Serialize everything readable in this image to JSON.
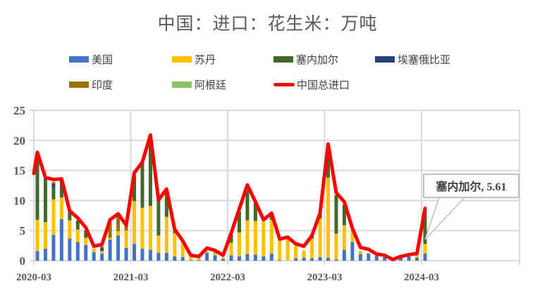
{
  "title": "中国：进口：花生米：万吨",
  "legend": [
    {
      "label": "美国",
      "color": "#4472C4",
      "type": "bar"
    },
    {
      "label": "苏丹",
      "color": "#FFC000",
      "type": "bar"
    },
    {
      "label": "塞内加尔",
      "color": "#43682B",
      "type": "bar"
    },
    {
      "label": "埃塞俄比亚",
      "color": "#264478",
      "type": "bar"
    },
    {
      "label": "印度",
      "color": "#997300",
      "type": "bar"
    },
    {
      "label": "阿根廷",
      "color": "#8CC168",
      "type": "bar"
    },
    {
      "label": "中国总进口",
      "color": "#FF0000",
      "type": "line"
    }
  ],
  "callout": {
    "text": "塞内加尔, 5.61"
  },
  "y_ticks": [
    "0",
    "5",
    "10",
    "15",
    "20",
    "25"
  ],
  "x_ticks": [
    "2020-03",
    "2021-03",
    "2022-03",
    "2023-03",
    "2024-03"
  ],
  "chart_data": {
    "type": "bar",
    "subtype": "stacked bar + line",
    "title": "中国：进口：花生米：万吨",
    "xlabel": "",
    "ylabel": "万吨",
    "ylim": [
      0,
      25
    ],
    "grid": true,
    "legend_position": "top",
    "annotations": [
      {
        "x": "2024-03",
        "series": "塞内加尔",
        "text": "塞内加尔, 5.61"
      }
    ],
    "categories": [
      "2020-03",
      "2020-04",
      "2020-05",
      "2020-06",
      "2020-07",
      "2020-08",
      "2020-09",
      "2020-10",
      "2020-11",
      "2020-12",
      "2021-01",
      "2021-02",
      "2021-03",
      "2021-04",
      "2021-05",
      "2021-06",
      "2021-07",
      "2021-08",
      "2021-09",
      "2021-10",
      "2021-11",
      "2021-12",
      "2022-01",
      "2022-02",
      "2022-03",
      "2022-04",
      "2022-05",
      "2022-06",
      "2022-07",
      "2022-08",
      "2022-09",
      "2022-10",
      "2022-11",
      "2022-12",
      "2023-01",
      "2023-02",
      "2023-03",
      "2023-04",
      "2023-05",
      "2023-06",
      "2023-07",
      "2023-08",
      "2023-09",
      "2023-10",
      "2023-11",
      "2023-12",
      "2024-01",
      "2024-02",
      "2024-03"
    ],
    "series": [
      {
        "name": "美国",
        "type": "bar",
        "color": "#4472C4",
        "values": [
          1.6,
          2.0,
          4.3,
          6.9,
          3.7,
          3.1,
          2.6,
          1.4,
          1.2,
          3.5,
          4.2,
          2.1,
          2.8,
          2.0,
          1.8,
          1.3,
          1.3,
          0.7,
          0.6,
          0.1,
          0.1,
          1.3,
          0.9,
          0.3,
          0.9,
          0.7,
          1.1,
          1.0,
          0.7,
          1.2,
          0.1,
          0.0,
          0.4,
          0.5,
          0.4,
          0.6,
          0.5,
          0.2,
          1.8,
          3.1,
          1.1,
          1.2,
          0.8,
          0.6,
          0.2,
          0.6,
          0.7,
          0.5,
          1.2
        ]
      },
      {
        "name": "苏丹",
        "type": "bar",
        "color": "#FFC000",
        "values": [
          5.2,
          4.4,
          5.9,
          3.6,
          3.0,
          2.1,
          1.2,
          0.6,
          0.4,
          0.3,
          0.7,
          2.9,
          7.1,
          6.8,
          7.3,
          2.9,
          6.0,
          3.9,
          2.4,
          0.5,
          0.3,
          0.1,
          0.2,
          0.2,
          2.1,
          4.0,
          5.6,
          5.6,
          5.8,
          5.6,
          3.3,
          3.6,
          2.1,
          1.2,
          3.3,
          6.4,
          13.3,
          4.3,
          4.1,
          2.0,
          0.5,
          0.1,
          0.1,
          0.0,
          0.0,
          0.0,
          0.0,
          0.5,
          1.6
        ]
      },
      {
        "name": "塞内加尔",
        "type": "bar",
        "color": "#43682B",
        "values": [
          11.0,
          6.9,
          1.9,
          2.9,
          1.4,
          1.5,
          1.2,
          0.0,
          0.0,
          0.0,
          0.0,
          0.0,
          4.3,
          7.1,
          11.6,
          5.9,
          4.2,
          0.3,
          0.0,
          0.0,
          0.0,
          0.0,
          0.0,
          0.0,
          1.3,
          3.5,
          5.0,
          3.0,
          0.0,
          0.7,
          0.0,
          0.5,
          0.0,
          0.0,
          0.5,
          0.8,
          5.4,
          6.4,
          3.4,
          0.0,
          0.0,
          0.0,
          0.0,
          0.0,
          0.0,
          0.0,
          0.0,
          0.0,
          5.61
        ]
      },
      {
        "name": "埃塞俄比亚",
        "type": "bar",
        "color": "#264478",
        "values": [
          0.0,
          0.3,
          0.7,
          0.0,
          0.0,
          0.0,
          0.0,
          0.0,
          0.5,
          0.0,
          0.0,
          0.0,
          0.0,
          0.3,
          0.0,
          0.0,
          0.0,
          0.0,
          0.0,
          0.0,
          0.0,
          0.0,
          0.0,
          0.0,
          0.0,
          0.0,
          0.0,
          0.0,
          0.0,
          0.0,
          0.0,
          0.0,
          0.0,
          0.0,
          0.0,
          0.0,
          0.0,
          0.0,
          0.0,
          0.0,
          0.0,
          0.0,
          0.0,
          0.0,
          0.0,
          0.0,
          0.0,
          0.0,
          0.0
        ]
      },
      {
        "name": "印度",
        "type": "bar",
        "color": "#997300",
        "values": [
          0.0,
          0.0,
          0.3,
          0.0,
          0.0,
          0.0,
          0.0,
          0.0,
          0.3,
          2.6,
          2.9,
          0.8,
          0.0,
          0.0,
          0.0,
          0.0,
          0.0,
          0.0,
          0.0,
          0.0,
          0.0,
          0.0,
          0.0,
          0.0,
          0.0,
          0.0,
          0.0,
          0.0,
          0.0,
          0.0,
          0.0,
          0.0,
          0.0,
          0.0,
          0.0,
          0.0,
          0.0,
          0.0,
          0.0,
          0.0,
          0.0,
          0.0,
          0.0,
          0.0,
          0.0,
          0.0,
          0.0,
          0.0,
          0.0
        ]
      },
      {
        "name": "阿根廷",
        "type": "bar",
        "color": "#8CC168",
        "values": [
          0.0,
          0.0,
          0.0,
          0.0,
          0.0,
          0.0,
          0.0,
          0.0,
          0.0,
          0.0,
          0.0,
          0.0,
          0.0,
          0.0,
          0.0,
          0.0,
          0.0,
          0.0,
          0.0,
          0.0,
          0.0,
          0.2,
          0.3,
          0.0,
          0.0,
          0.0,
          0.0,
          0.0,
          0.0,
          0.0,
          0.0,
          0.0,
          0.0,
          0.0,
          0.0,
          0.0,
          0.0,
          0.0,
          0.0,
          0.0,
          0.0,
          0.0,
          0.0,
          0.0,
          0.0,
          0.0,
          0.0,
          0.0,
          0.0
        ]
      },
      {
        "name": "中国总进口",
        "type": "line",
        "color": "#FF0000",
        "values": [
          18.0,
          13.8,
          13.5,
          13.6,
          8.3,
          7.1,
          5.5,
          2.4,
          2.7,
          6.8,
          7.8,
          5.9,
          14.6,
          16.4,
          20.9,
          10.1,
          11.9,
          5.2,
          3.3,
          0.9,
          0.7,
          2.1,
          1.7,
          0.9,
          4.6,
          8.6,
          12.6,
          9.8,
          6.8,
          7.9,
          3.6,
          3.9,
          2.8,
          2.4,
          4.2,
          7.9,
          19.4,
          11.3,
          9.8,
          5.4,
          2.2,
          1.9,
          1.1,
          0.9,
          0.2,
          0.7,
          1.0,
          1.2,
          8.7
        ]
      }
    ]
  }
}
